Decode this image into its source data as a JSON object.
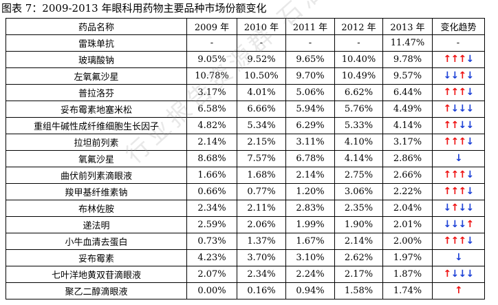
{
  "caption": "图表 7：2009-2013 年眼科用药物主要品种市场份额变化",
  "watermark": "行业报告资源群 石油情报站",
  "colors": {
    "up": "#ee1111",
    "down": "#1a3fd6"
  },
  "table": {
    "headers": [
      "药品名称",
      "2009 年",
      "2010 年",
      "2011 年",
      "2012 年",
      "2013 年",
      "变化趋势"
    ],
    "rows": [
      {
        "name": "雷珠单抗",
        "values": [
          "-",
          "-",
          "-",
          "-",
          "11.47%"
        ],
        "trend_text": "-",
        "trend": []
      },
      {
        "name": "玻璃酸钠",
        "values": [
          "9.05%",
          "9.52%",
          "9.65%",
          "10.40%",
          "9.78%"
        ],
        "trend_text": "",
        "trend": [
          "up",
          "up",
          "up",
          "down"
        ]
      },
      {
        "name": "左氧氟沙星",
        "values": [
          "10.78%",
          "10.50%",
          "9.70%",
          "10.49%",
          "9.57%"
        ],
        "trend_text": "",
        "trend": [
          "down",
          "down",
          "up",
          "down"
        ]
      },
      {
        "name": "普拉洛芬",
        "values": [
          "3.17%",
          "4.01%",
          "5.06%",
          "6.62%",
          "6.44%"
        ],
        "trend_text": "",
        "trend": [
          "up",
          "up",
          "up",
          "down"
        ]
      },
      {
        "name": "妥布霉素地塞米松",
        "values": [
          "6.58%",
          "6.66%",
          "5.94%",
          "5.76%",
          "4.49%"
        ],
        "trend_text": "",
        "trend": [
          "up",
          "down",
          "down",
          "down"
        ]
      },
      {
        "name": "重组牛碱性成纤维细胞生长因子",
        "values": [
          "4.82%",
          "5.34%",
          "6.29%",
          "5.33%",
          "4.14%"
        ],
        "trend_text": "",
        "trend": [
          "up",
          "up",
          "down",
          "down"
        ]
      },
      {
        "name": "拉坦前列素",
        "values": [
          "2.14%",
          "2.15%",
          "3.11%",
          "4.10%",
          "3.17%"
        ],
        "trend_text": "",
        "trend": [
          "up",
          "up",
          "up",
          "down"
        ]
      },
      {
        "name": "氧氟沙星",
        "values": [
          "8.68%",
          "7.57%",
          "6.78%",
          "4.14%",
          "2.86%"
        ],
        "trend_text": "",
        "trend": [
          "down"
        ]
      },
      {
        "name": "曲伏前列素滴眼液",
        "values": [
          "1.66%",
          "1.68%",
          "2.14%",
          "2.75%",
          "2.66%"
        ],
        "trend_text": "",
        "trend": [
          "up",
          "up",
          "up",
          "down"
        ]
      },
      {
        "name": "羧甲基纤维素钠",
        "values": [
          "0.66%",
          "0.77%",
          "1.20%",
          "3.06%",
          "2.22%"
        ],
        "trend_text": "",
        "trend": [
          "up",
          "up",
          "up",
          "down"
        ]
      },
      {
        "name": "布林佐胺",
        "values": [
          "2.34%",
          "2.11%",
          "2.83%",
          "2.35%",
          "2.04%"
        ],
        "trend_text": "",
        "trend": [
          "down",
          "up",
          "down",
          "down"
        ]
      },
      {
        "name": "递法明",
        "values": [
          "2.59%",
          "2.06%",
          "1.99%",
          "1.90%",
          "2.01%"
        ],
        "trend_text": "",
        "trend": [
          "down",
          "down",
          "down",
          "up"
        ]
      },
      {
        "name": "小牛血清去蛋白",
        "values": [
          "0.73%",
          "1.37%",
          "1.67%",
          "2.14%",
          "2.00%"
        ],
        "trend_text": "",
        "trend": [
          "up",
          "up",
          "up",
          "down"
        ]
      },
      {
        "name": "妥布霉素",
        "values": [
          "4.23%",
          "3.70%",
          "3.10%",
          "2.62%",
          "1.97%"
        ],
        "trend_text": "",
        "trend": [
          "down"
        ]
      },
      {
        "name": "七叶洋地黄双苷滴眼液",
        "values": [
          "2.07%",
          "2.34%",
          "2.24%",
          "2.17%",
          "1.87%"
        ],
        "trend_text": "",
        "trend": [
          "up",
          "down",
          "down",
          "down"
        ]
      },
      {
        "name": "聚乙二醇滴眼液",
        "values": [
          "0.00%",
          "0.16%",
          "0.94%",
          "1.58%",
          "1.74%"
        ],
        "trend_text": "",
        "trend": [
          "up"
        ]
      }
    ]
  }
}
